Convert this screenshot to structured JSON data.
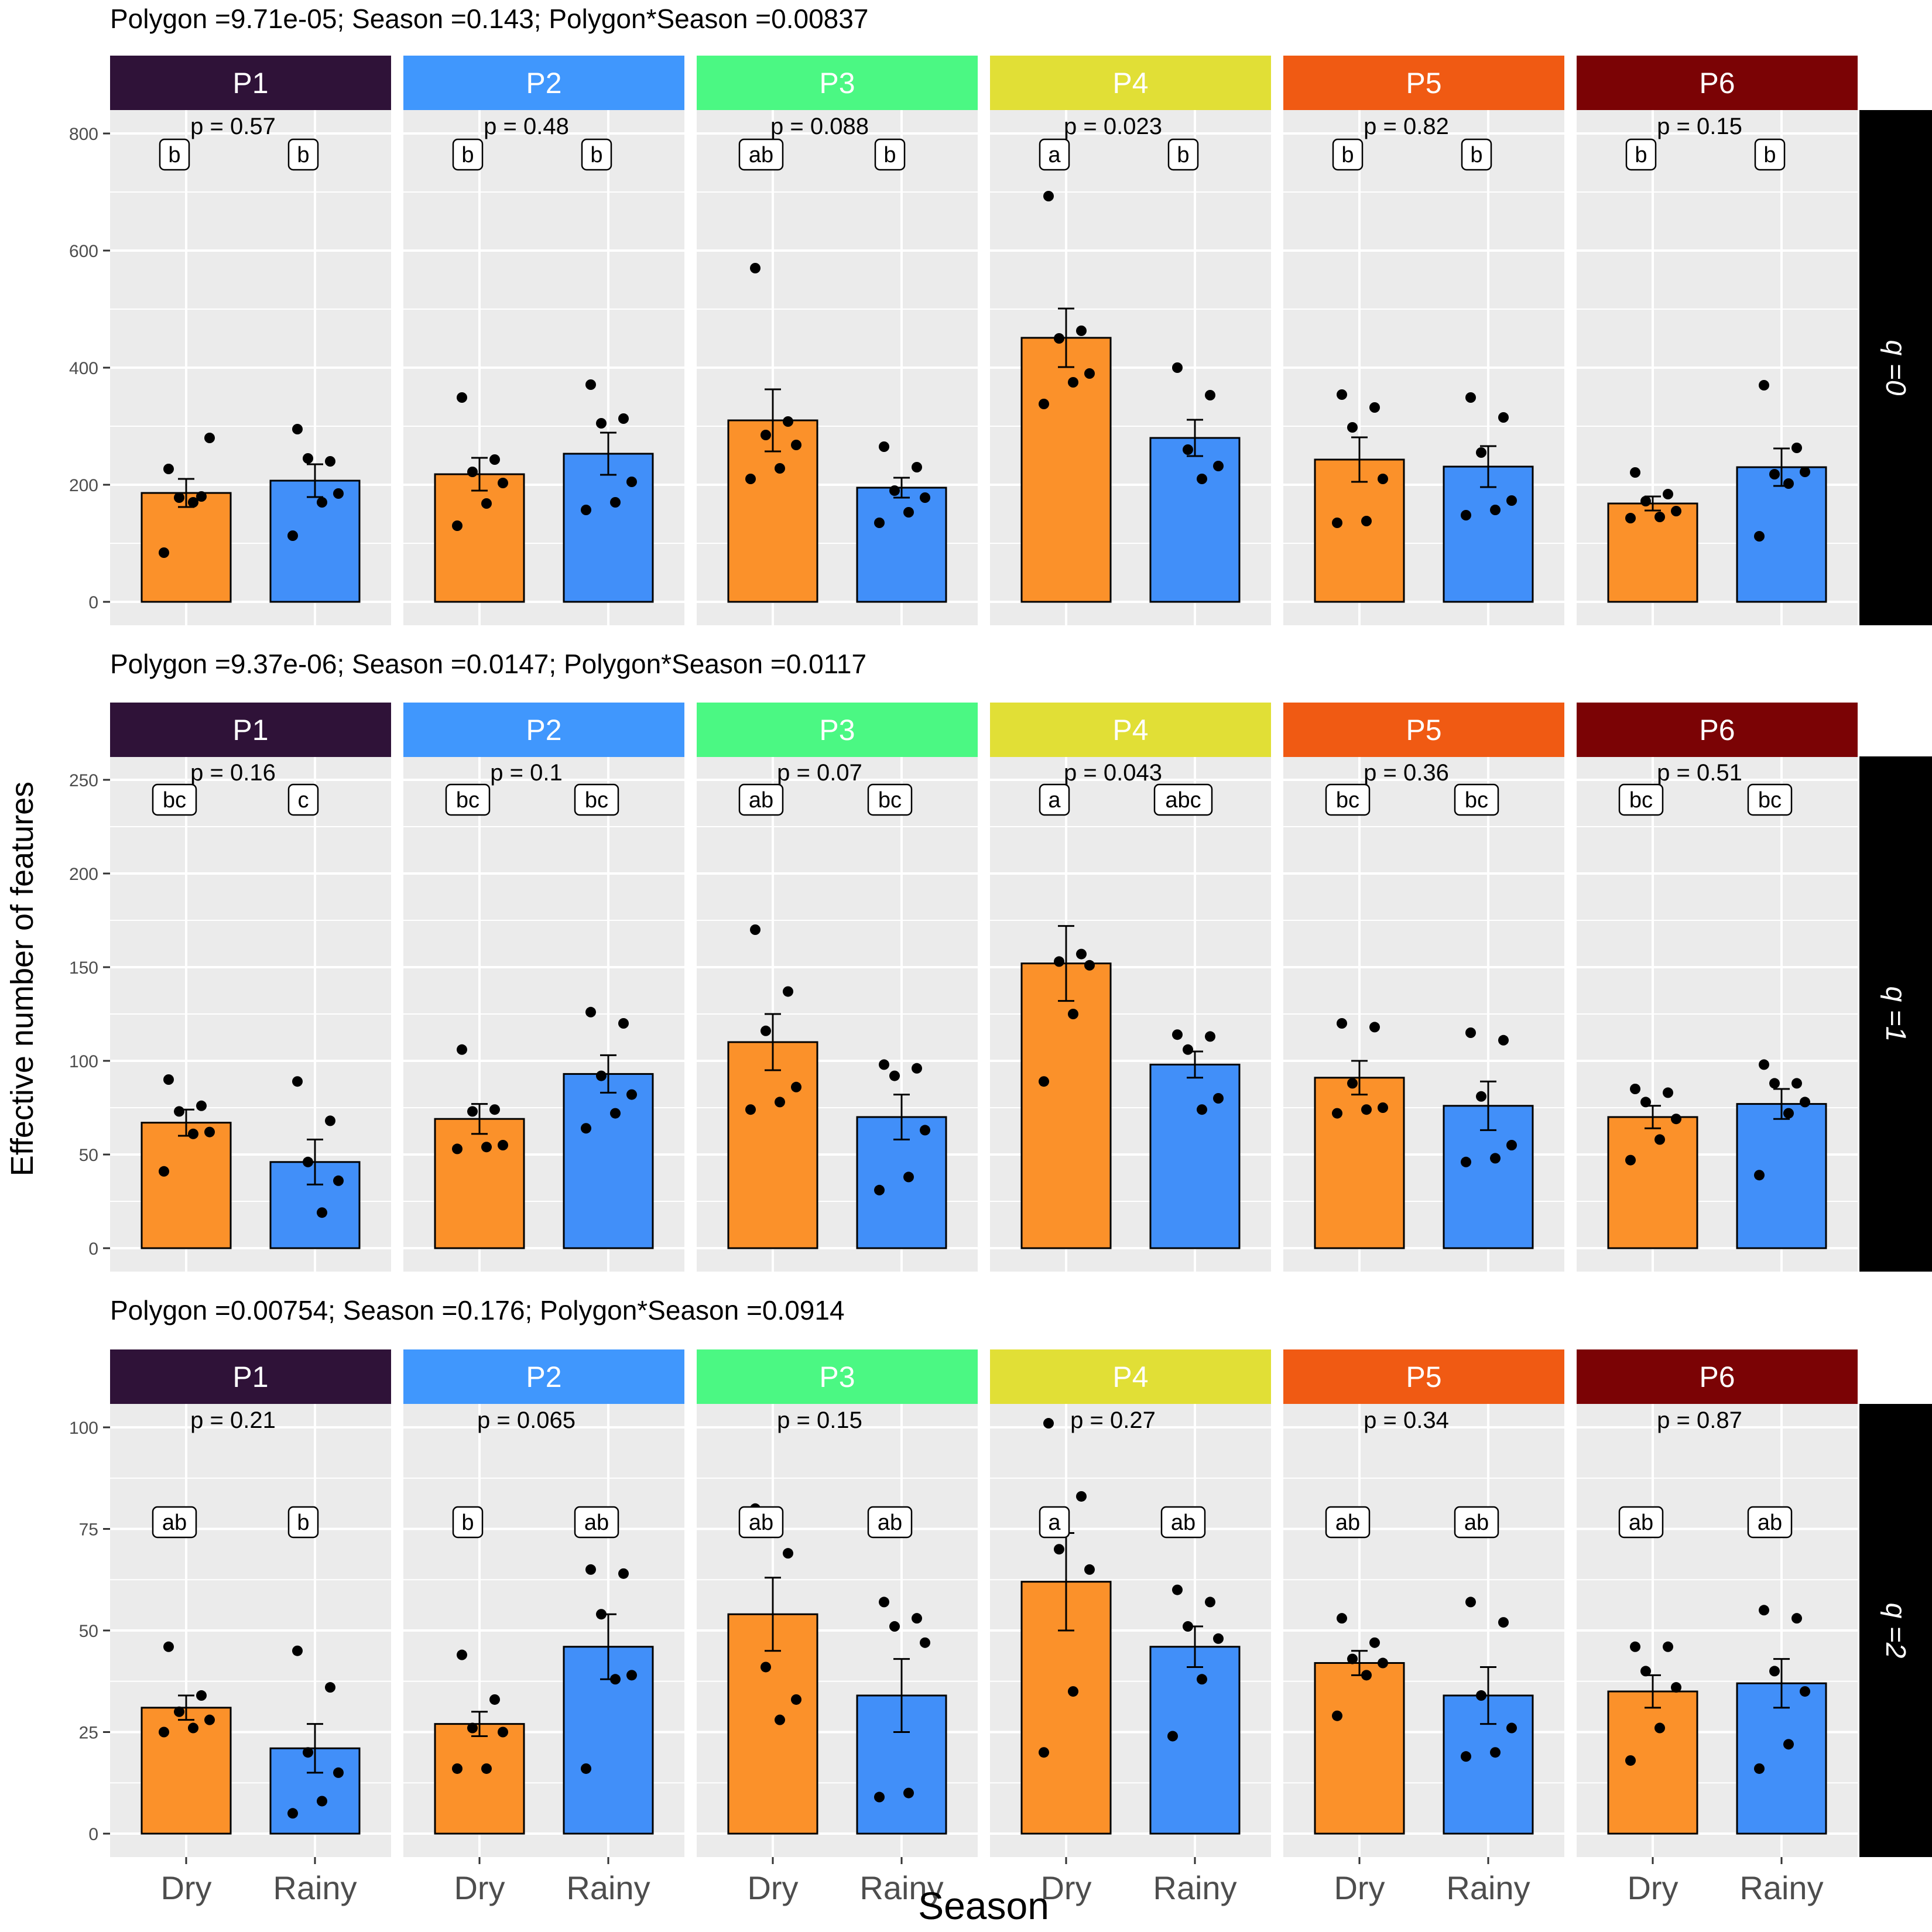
{
  "chart_data": {
    "type": "bar",
    "ylabel": "Effective number of features",
    "xlabel": "Season",
    "categories": [
      "Dry",
      "Rainy"
    ],
    "polygon_colors": {
      "P1": "#2f1238",
      "P2": "#4097fd",
      "P3": "#4bf883",
      "P4": "#e1df36",
      "P5": "#f05a13",
      "P6": "#7b0305"
    },
    "bar_colors": {
      "Dry": "#fb912a",
      "Rainy": "#418ff9"
    },
    "rows": [
      {
        "title": "Polygon =9.71e-05; Season =0.143; Polygon*Season =0.00837",
        "strip": "q =0",
        "ylim": [
          0,
          800
        ],
        "yticks": [
          "0",
          "200",
          "400",
          "600",
          "800"
        ],
        "panels": [
          {
            "polygon": "P1",
            "p": "p = 0.57",
            "letters": [
              "b",
              "b"
            ],
            "means": [
              186,
              207
            ],
            "se": [
              24,
              28
            ],
            "points": [
              [
                227,
                180,
                178,
                280,
                170,
                84
              ],
              [
                295,
                240,
                245,
                185,
                170,
                113
              ]
            ]
          },
          {
            "polygon": "P2",
            "p": "p = 0.48",
            "letters": [
              "b",
              "b"
            ],
            "means": [
              218,
              253
            ],
            "se": [
              28,
              36
            ],
            "points": [
              [
                349,
                243,
                222,
                203,
                168,
                130
              ],
              [
                371,
                313,
                305,
                205,
                170,
                157
              ]
            ]
          },
          {
            "polygon": "P3",
            "p": "p = 0.088",
            "letters": [
              "ab",
              "b"
            ],
            "means": [
              310,
              195
            ],
            "se": [
              53,
              17
            ],
            "points": [
              [
                570,
                308,
                285,
                268,
                228,
                210
              ],
              [
                265,
                230,
                190,
                178,
                153,
                135
              ]
            ]
          },
          {
            "polygon": "P4",
            "p": "p = 0.023",
            "letters": [
              "a",
              "b"
            ],
            "means": [
              451,
              280
            ],
            "se": [
              50,
              31
            ],
            "points": [
              [
                693,
                463,
                450,
                390,
                375,
                338
              ],
              [
                400,
                353,
                260,
                232,
                210
              ]
            ]
          },
          {
            "polygon": "P5",
            "p": "p = 0.82",
            "letters": [
              "b",
              "b"
            ],
            "means": [
              243,
              231
            ],
            "se": [
              38,
              35
            ],
            "points": [
              [
                354,
                332,
                298,
                210,
                138,
                135
              ],
              [
                349,
                315,
                255,
                173,
                157,
                148
              ]
            ]
          },
          {
            "polygon": "P6",
            "p": "p = 0.15",
            "letters": [
              "b",
              "b"
            ],
            "means": [
              168,
              230
            ],
            "se": [
              12,
              32
            ],
            "points": [
              [
                221,
                184,
                172,
                155,
                145,
                143
              ],
              [
                370,
                263,
                218,
                222,
                202,
                112
              ]
            ]
          }
        ]
      },
      {
        "title": "Polygon =9.37e-06; Season =0.0147; Polygon*Season =0.0117",
        "strip": "q =1",
        "ylim": [
          0,
          250
        ],
        "yticks": [
          "0",
          "50",
          "100",
          "150",
          "200",
          "250"
        ],
        "panels": [
          {
            "polygon": "P1",
            "p": "p = 0.16",
            "letters": [
              "bc",
              "c"
            ],
            "means": [
              67,
              46
            ],
            "se": [
              7,
              12
            ],
            "points": [
              [
                90,
                76,
                73,
                62,
                61,
                41
              ],
              [
                89,
                68,
                46,
                36,
                19
              ]
            ]
          },
          {
            "polygon": "P2",
            "p": "p = 0.1",
            "letters": [
              "bc",
              "bc"
            ],
            "means": [
              69,
              93
            ],
            "se": [
              8,
              10
            ],
            "points": [
              [
                106,
                74,
                73,
                55,
                54,
                53
              ],
              [
                126,
                120,
                92,
                82,
                72,
                64
              ]
            ]
          },
          {
            "polygon": "P3",
            "p": "p = 0.07",
            "letters": [
              "ab",
              "bc"
            ],
            "means": [
              110,
              70
            ],
            "se": [
              15,
              12
            ],
            "points": [
              [
                170,
                137,
                116,
                86,
                78,
                74
              ],
              [
                98,
                96,
                92,
                63,
                38,
                31
              ]
            ]
          },
          {
            "polygon": "P4",
            "p": "p = 0.043",
            "letters": [
              "a",
              "abc"
            ],
            "means": [
              152,
              98
            ],
            "se": [
              20,
              7
            ],
            "points": [
              [
                240,
                157,
                153,
                151,
                125,
                89
              ],
              [
                114,
                113,
                106,
                80,
                74
              ]
            ]
          },
          {
            "polygon": "P5",
            "p": "p = 0.36",
            "letters": [
              "bc",
              "bc"
            ],
            "means": [
              91,
              76
            ],
            "se": [
              9,
              13
            ],
            "points": [
              [
                120,
                118,
                88,
                75,
                74,
                72
              ],
              [
                115,
                111,
                81,
                55,
                48,
                46
              ]
            ]
          },
          {
            "polygon": "P6",
            "p": "p = 0.51",
            "letters": [
              "bc",
              "bc"
            ],
            "means": [
              70,
              77
            ],
            "se": [
              6,
              8
            ],
            "points": [
              [
                85,
                83,
                78,
                69,
                58,
                47
              ],
              [
                98,
                88,
                88,
                78,
                72,
                39
              ]
            ]
          }
        ]
      },
      {
        "title": "Polygon =0.00754; Season =0.176; Polygon*Season =0.0914",
        "strip": "q =2",
        "ylim": [
          0,
          100
        ],
        "yticks": [
          "0",
          "25",
          "50",
          "75",
          "100"
        ],
        "panels": [
          {
            "polygon": "P1",
            "p": "p = 0.21",
            "letters": [
              "ab",
              "b"
            ],
            "means": [
              31,
              21
            ],
            "se": [
              3,
              6
            ],
            "points": [
              [
                46,
                34,
                30,
                28,
                26,
                25
              ],
              [
                45,
                36,
                20,
                15,
                8,
                5
              ]
            ]
          },
          {
            "polygon": "P2",
            "p": "p = 0.065",
            "letters": [
              "b",
              "ab"
            ],
            "means": [
              27,
              46
            ],
            "se": [
              3,
              8
            ],
            "points": [
              [
                44,
                33,
                26,
                25,
                16,
                16
              ],
              [
                65,
                64,
                54,
                39,
                38,
                16
              ]
            ]
          },
          {
            "polygon": "P3",
            "p": "p = 0.15",
            "letters": [
              "ab",
              "ab"
            ],
            "means": [
              54,
              34
            ],
            "se": [
              9,
              9
            ],
            "points": [
              [
                80,
                69,
                41,
                33,
                28
              ],
              [
                57,
                53,
                51,
                47,
                10,
                9
              ]
            ]
          },
          {
            "polygon": "P4",
            "p": "p = 0.27",
            "letters": [
              "a",
              "ab"
            ],
            "means": [
              62,
              46
            ],
            "se": [
              12,
              5
            ],
            "points": [
              [
                101,
                83,
                70,
                65,
                35,
                20
              ],
              [
                60,
                57,
                51,
                48,
                38,
                24
              ]
            ]
          },
          {
            "polygon": "P5",
            "p": "p = 0.34",
            "letters": [
              "ab",
              "ab"
            ],
            "means": [
              42,
              34
            ],
            "se": [
              3,
              7
            ],
            "points": [
              [
                53,
                47,
                43,
                42,
                39,
                29
              ],
              [
                57,
                52,
                34,
                26,
                20,
                19
              ]
            ]
          },
          {
            "polygon": "P6",
            "p": "p = 0.87",
            "letters": [
              "ab",
              "ab"
            ],
            "means": [
              35,
              37
            ],
            "se": [
              4,
              6
            ],
            "points": [
              [
                46,
                46,
                40,
                36,
                26,
                18
              ],
              [
                55,
                53,
                40,
                35,
                22,
                16
              ]
            ]
          }
        ]
      }
    ]
  }
}
